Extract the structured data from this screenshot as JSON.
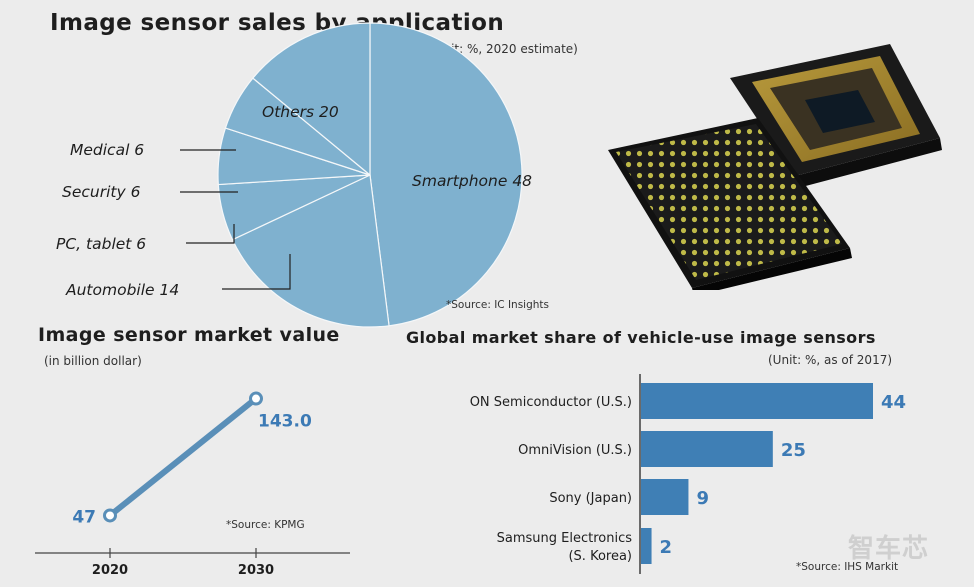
{
  "colors": {
    "pie_fill": "#7fb1cf",
    "bar_fill": "#3f7fb5",
    "line": "#5a8fb8",
    "label_blue": "#3c7ab5",
    "text": "#1e1e1e",
    "background": "#ececec"
  },
  "pie_section": {
    "title": "Image sensor sales by application",
    "unit": "(Unit: %, 2020 estimate)",
    "source": "*Source: IC Insights"
  },
  "line_section": {
    "title": "Image sensor market value",
    "unit": "(in billion dollar)",
    "source": "*Source: KPMG"
  },
  "bar_section": {
    "title": "Global market share of vehicle-use image sensors",
    "unit": "(Unit: %, as of 2017)",
    "source": "*Source: IHS Markit"
  },
  "watermark": "智车芯",
  "chart_data": [
    {
      "type": "pie",
      "title": "Image sensor sales by application",
      "subtitle": "(Unit: %, 2020 estimate)",
      "categories": [
        "Smartphone",
        "Others",
        "Medical",
        "Security",
        "PC, tablet",
        "Automobile"
      ],
      "values": [
        48,
        20,
        6,
        6,
        6,
        14
      ],
      "labels": [
        "Smartphone 48",
        "Others 20",
        "Medical 6",
        "Security 6",
        "PC, tablet 6",
        "Automobile 14"
      ]
    },
    {
      "type": "line",
      "title": "Image sensor market value",
      "ylabel": "(in billion dollar)",
      "x": [
        "2020",
        "2030"
      ],
      "values": [
        47,
        143.0
      ],
      "value_labels": [
        "47",
        "143.0"
      ]
    },
    {
      "type": "bar",
      "orientation": "horizontal",
      "title": "Global market share of vehicle-use image sensors",
      "subtitle": "(Unit: %, as of 2017)",
      "categories": [
        [
          "ON Semiconductor (U.S.)"
        ],
        [
          "OmniVision (U.S.)"
        ],
        [
          "Sony (Japan)"
        ],
        [
          "Samsung Electronics",
          "(S. Korea)"
        ]
      ],
      "values": [
        44,
        25,
        9,
        2
      ]
    }
  ]
}
